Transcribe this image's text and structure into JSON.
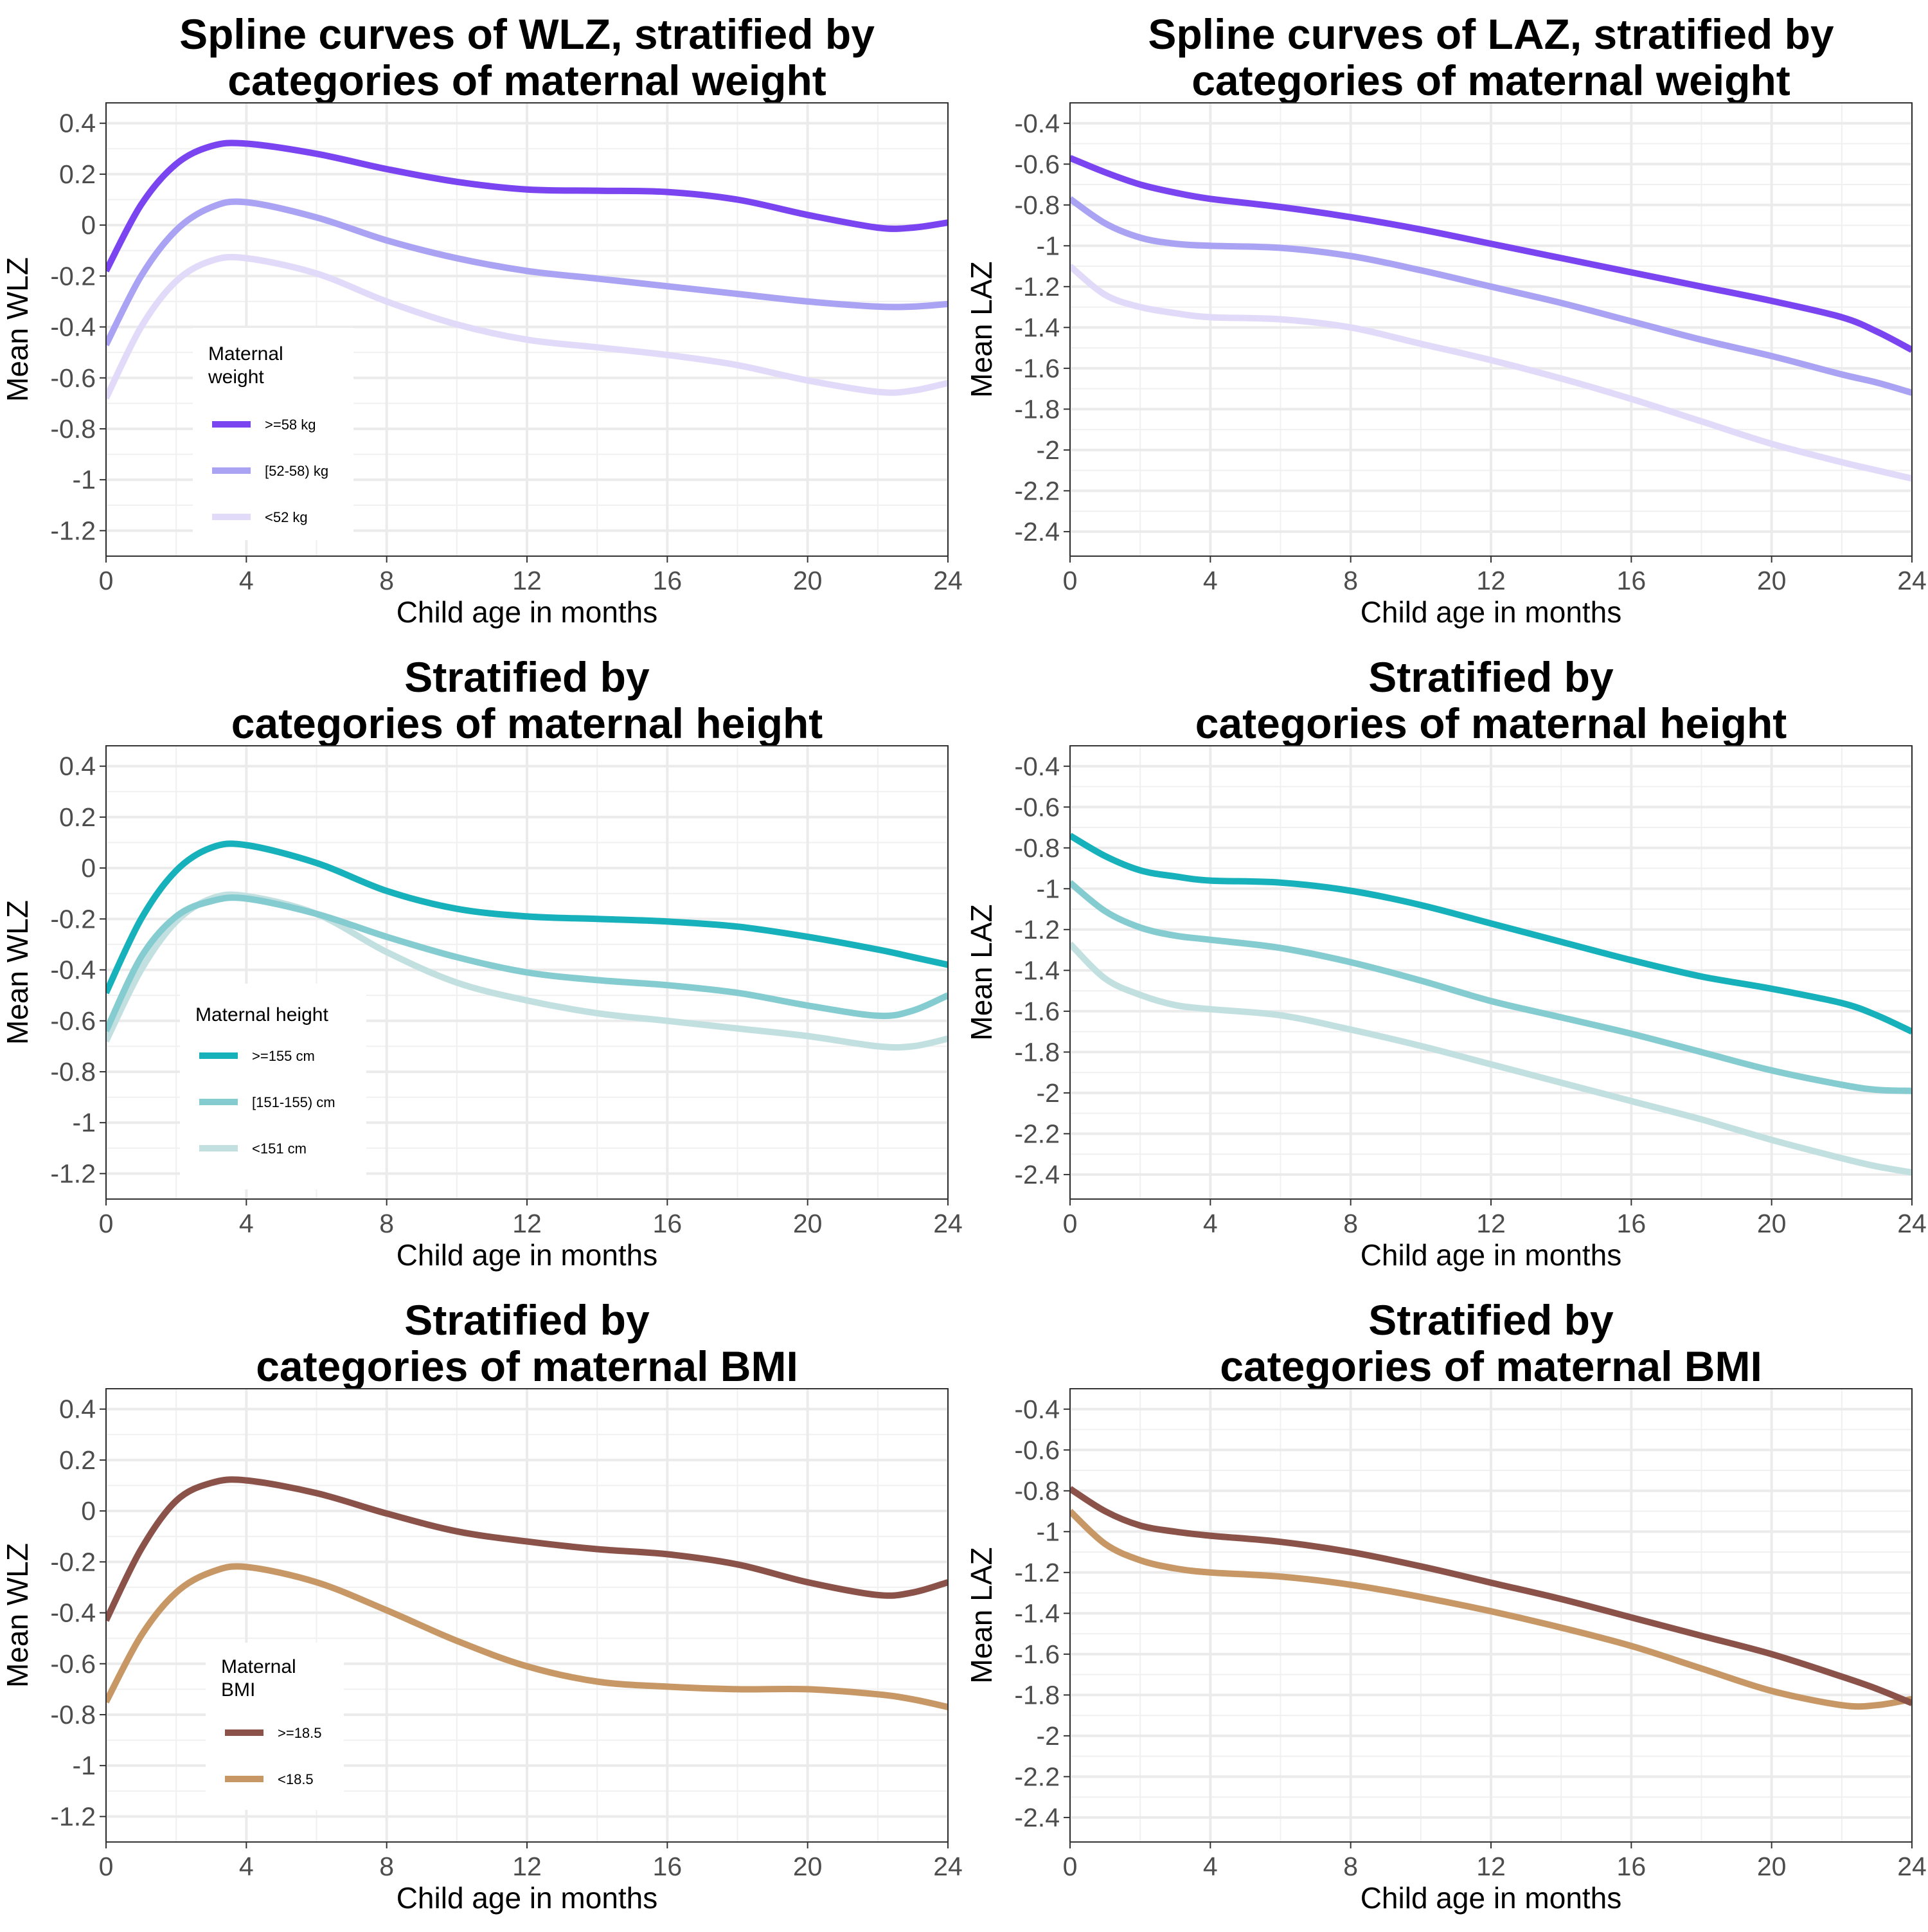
{
  "chart_data": [
    {
      "type": "line",
      "title": [
        "Spline curves of WLZ, stratified by",
        "categories of maternal weight"
      ],
      "xlabel": "Child age in months",
      "ylabel": "Mean WLZ",
      "xlim": [
        0,
        24
      ],
      "ylim": [
        -1.3,
        0.48
      ],
      "xticks": [
        0,
        4,
        8,
        12,
        16,
        20,
        24
      ],
      "xtick_labels": [
        "0",
        "4",
        "8",
        "12",
        "16",
        "20",
        "24"
      ],
      "yticks": [
        0.4,
        0.2,
        0,
        -0.2,
        -0.4,
        -0.6,
        -0.8,
        -1,
        -1.2
      ],
      "ytick_labels": [
        "0.4",
        "0.2",
        "0",
        "-0.2",
        "-0.4",
        "-0.6",
        "-0.8",
        "-1",
        "-1.2"
      ],
      "grid": true,
      "legend": {
        "title": [
          "Maternal",
          "weight"
        ],
        "position": "bottom-left",
        "labels": [
          ">=58 kg",
          "[52-58) kg",
          "<52 kg"
        ]
      },
      "x": [
        0,
        1,
        2,
        3,
        4,
        6,
        8,
        10,
        12,
        14,
        16,
        18,
        20,
        22,
        23,
        24
      ],
      "series": [
        {
          "name": ">=58 kg",
          "color": "#7a45f0",
          "values": [
            -0.18,
            0.08,
            0.24,
            0.31,
            0.32,
            0.28,
            0.22,
            0.17,
            0.14,
            0.135,
            0.13,
            0.1,
            0.04,
            -0.01,
            -0.01,
            0.01
          ]
        },
        {
          "name": "[52-58) kg",
          "color": "#aaa3f3",
          "values": [
            -0.47,
            -0.2,
            -0.02,
            0.07,
            0.09,
            0.03,
            -0.06,
            -0.13,
            -0.18,
            -0.21,
            -0.24,
            -0.27,
            -0.3,
            -0.32,
            -0.32,
            -0.31
          ]
        },
        {
          "name": "<52 kg",
          "color": "#e2daf9",
          "values": [
            -0.68,
            -0.4,
            -0.22,
            -0.14,
            -0.13,
            -0.19,
            -0.3,
            -0.39,
            -0.45,
            -0.48,
            -0.51,
            -0.55,
            -0.61,
            -0.655,
            -0.65,
            -0.62
          ]
        }
      ]
    },
    {
      "type": "line",
      "title": [
        "Spline curves of LAZ, stratified by",
        "categories of maternal weight"
      ],
      "xlabel": "Child age in months",
      "ylabel": "Mean LAZ",
      "xlim": [
        0,
        24
      ],
      "ylim": [
        -2.52,
        -0.3
      ],
      "xticks": [
        0,
        4,
        8,
        12,
        16,
        20,
        24
      ],
      "xtick_labels": [
        "0",
        "4",
        "8",
        "12",
        "16",
        "20",
        "24"
      ],
      "yticks": [
        -0.4,
        -0.6,
        -0.8,
        -1,
        -1.2,
        -1.4,
        -1.6,
        -1.8,
        -2,
        -2.2,
        -2.4
      ],
      "ytick_labels": [
        "-0.4",
        "-0.6",
        "-0.8",
        "-1",
        "-1.2",
        "-1.4",
        "-1.6",
        "-1.8",
        "-2",
        "-2.2",
        "-2.4"
      ],
      "grid": true,
      "x": [
        0,
        1,
        2,
        3,
        4,
        6,
        8,
        10,
        12,
        14,
        16,
        18,
        20,
        22,
        23,
        24
      ],
      "series": [
        {
          "name": ">=58 kg",
          "color": "#7a45f0",
          "values": [
            -0.57,
            -0.64,
            -0.7,
            -0.74,
            -0.77,
            -0.81,
            -0.86,
            -0.92,
            -0.99,
            -1.06,
            -1.13,
            -1.2,
            -1.27,
            -1.35,
            -1.42,
            -1.51
          ]
        },
        {
          "name": "[52-58) kg",
          "color": "#aaa3f3",
          "values": [
            -0.77,
            -0.89,
            -0.96,
            -0.99,
            -1.0,
            -1.01,
            -1.05,
            -1.12,
            -1.2,
            -1.28,
            -1.37,
            -1.46,
            -1.54,
            -1.63,
            -1.67,
            -1.72
          ]
        },
        {
          "name": "<52 kg",
          "color": "#e2daf9",
          "values": [
            -1.1,
            -1.24,
            -1.3,
            -1.33,
            -1.35,
            -1.36,
            -1.4,
            -1.48,
            -1.56,
            -1.65,
            -1.75,
            -1.86,
            -1.97,
            -2.06,
            -2.1,
            -2.14
          ]
        }
      ]
    },
    {
      "type": "line",
      "title": [
        "Stratified by",
        "categories of maternal height"
      ],
      "xlabel": "Child age in months",
      "ylabel": "Mean WLZ",
      "xlim": [
        0,
        24
      ],
      "ylim": [
        -1.3,
        0.48
      ],
      "xticks": [
        0,
        4,
        8,
        12,
        16,
        20,
        24
      ],
      "xtick_labels": [
        "0",
        "4",
        "8",
        "12",
        "16",
        "20",
        "24"
      ],
      "yticks": [
        0.4,
        0.2,
        0,
        -0.2,
        -0.4,
        -0.6,
        -0.8,
        -1,
        -1.2
      ],
      "ytick_labels": [
        "0.4",
        "0.2",
        "0",
        "-0.2",
        "-0.4",
        "-0.6",
        "-0.8",
        "-1",
        "-1.2"
      ],
      "grid": true,
      "legend": {
        "title": [
          "Maternal height"
        ],
        "position": "bottom-left",
        "labels": [
          ">=155 cm",
          "[151-155) cm",
          "<151 cm"
        ]
      },
      "x": [
        0,
        1,
        2,
        3,
        4,
        6,
        8,
        10,
        12,
        14,
        16,
        18,
        20,
        22,
        23,
        24
      ],
      "series": [
        {
          "name": ">=155 cm",
          "color": "#16b1bb",
          "values": [
            -0.49,
            -0.2,
            -0.01,
            0.08,
            0.09,
            0.02,
            -0.09,
            -0.16,
            -0.19,
            -0.2,
            -0.21,
            -0.23,
            -0.27,
            -0.32,
            -0.35,
            -0.38
          ]
        },
        {
          "name": "[151-155) cm",
          "color": "#84ccd0",
          "values": [
            -0.64,
            -0.35,
            -0.19,
            -0.13,
            -0.12,
            -0.18,
            -0.27,
            -0.35,
            -0.41,
            -0.44,
            -0.46,
            -0.49,
            -0.54,
            -0.58,
            -0.56,
            -0.5
          ]
        },
        {
          "name": "<151 cm",
          "color": "#c3e0e1",
          "values": [
            -0.68,
            -0.4,
            -0.21,
            -0.12,
            -0.11,
            -0.18,
            -0.33,
            -0.45,
            -0.52,
            -0.57,
            -0.6,
            -0.63,
            -0.66,
            -0.7,
            -0.7,
            -0.67
          ]
        }
      ]
    },
    {
      "type": "line",
      "title": [
        "Stratified by",
        "categories of maternal height"
      ],
      "xlabel": "Child age in months",
      "ylabel": "Mean LAZ",
      "xlim": [
        0,
        24
      ],
      "ylim": [
        -2.52,
        -0.3
      ],
      "xticks": [
        0,
        4,
        8,
        12,
        16,
        20,
        24
      ],
      "xtick_labels": [
        "0",
        "4",
        "8",
        "12",
        "16",
        "20",
        "24"
      ],
      "yticks": [
        -0.4,
        -0.6,
        -0.8,
        -1,
        -1.2,
        -1.4,
        -1.6,
        -1.8,
        -2,
        -2.2,
        -2.4
      ],
      "ytick_labels": [
        "-0.4",
        "-0.6",
        "-0.8",
        "-1",
        "-1.2",
        "-1.4",
        "-1.6",
        "-1.8",
        "-2",
        "-2.2",
        "-2.4"
      ],
      "grid": true,
      "x": [
        0,
        1,
        2,
        3,
        4,
        6,
        8,
        10,
        12,
        14,
        16,
        18,
        20,
        22,
        23,
        24
      ],
      "series": [
        {
          "name": ">=155 cm",
          "color": "#16b1bb",
          "values": [
            -0.74,
            -0.84,
            -0.91,
            -0.94,
            -0.96,
            -0.97,
            -1.01,
            -1.08,
            -1.17,
            -1.26,
            -1.35,
            -1.43,
            -1.49,
            -1.56,
            -1.62,
            -1.7
          ]
        },
        {
          "name": "[151-155) cm",
          "color": "#84ccd0",
          "values": [
            -0.97,
            -1.11,
            -1.19,
            -1.23,
            -1.25,
            -1.29,
            -1.36,
            -1.45,
            -1.55,
            -1.63,
            -1.71,
            -1.8,
            -1.89,
            -1.96,
            -1.985,
            -1.99
          ]
        },
        {
          "name": "<151 cm",
          "color": "#c3e0e1",
          "values": [
            -1.27,
            -1.44,
            -1.52,
            -1.57,
            -1.59,
            -1.62,
            -1.69,
            -1.77,
            -1.86,
            -1.95,
            -2.04,
            -2.13,
            -2.23,
            -2.32,
            -2.36,
            -2.39
          ]
        }
      ]
    },
    {
      "type": "line",
      "title": [
        "Stratified by",
        "categories of maternal BMI"
      ],
      "xlabel": "Child age in months",
      "ylabel": "Mean WLZ",
      "xlim": [
        0,
        24
      ],
      "ylim": [
        -1.3,
        0.48
      ],
      "xticks": [
        0,
        4,
        8,
        12,
        16,
        20,
        24
      ],
      "xtick_labels": [
        "0",
        "4",
        "8",
        "12",
        "16",
        "20",
        "24"
      ],
      "yticks": [
        0.4,
        0.2,
        0,
        -0.2,
        -0.4,
        -0.6,
        -0.8,
        -1,
        -1.2
      ],
      "ytick_labels": [
        "0.4",
        "0.2",
        "0",
        "-0.2",
        "-0.4",
        "-0.6",
        "-0.8",
        "-1",
        "-1.2"
      ],
      "grid": true,
      "legend": {
        "title": [
          "Maternal",
          "BMI"
        ],
        "position": "bottom-left",
        "labels": [
          ">=18.5",
          "<18.5"
        ]
      },
      "x": [
        0,
        1,
        2,
        3,
        4,
        6,
        8,
        10,
        12,
        14,
        16,
        18,
        20,
        22,
        23,
        24
      ],
      "series": [
        {
          "name": ">=18.5",
          "color": "#8b5249",
          "values": [
            -0.43,
            -0.15,
            0.04,
            0.11,
            0.12,
            0.07,
            -0.01,
            -0.08,
            -0.12,
            -0.15,
            -0.17,
            -0.21,
            -0.28,
            -0.33,
            -0.32,
            -0.28
          ]
        },
        {
          "name": "<18.5",
          "color": "#c79866",
          "values": [
            -0.75,
            -0.49,
            -0.32,
            -0.24,
            -0.22,
            -0.28,
            -0.39,
            -0.51,
            -0.61,
            -0.67,
            -0.69,
            -0.7,
            -0.7,
            -0.72,
            -0.74,
            -0.77
          ]
        }
      ]
    },
    {
      "type": "line",
      "title": [
        "Stratified by",
        "categories of maternal BMI"
      ],
      "xlabel": "Child age in months",
      "ylabel": "Mean LAZ",
      "xlim": [
        0,
        24
      ],
      "ylim": [
        -2.52,
        -0.3
      ],
      "xticks": [
        0,
        4,
        8,
        12,
        16,
        20,
        24
      ],
      "xtick_labels": [
        "0",
        "4",
        "8",
        "12",
        "16",
        "20",
        "24"
      ],
      "yticks": [
        -0.4,
        -0.6,
        -0.8,
        -1,
        -1.2,
        -1.4,
        -1.6,
        -1.8,
        -2,
        -2.2,
        -2.4
      ],
      "ytick_labels": [
        "-0.4",
        "-0.6",
        "-0.8",
        "-1",
        "-1.2",
        "-1.4",
        "-1.6",
        "-1.8",
        "-2",
        "-2.2",
        "-2.4"
      ],
      "grid": true,
      "x": [
        0,
        1,
        2,
        3,
        4,
        6,
        8,
        10,
        12,
        14,
        16,
        18,
        20,
        22,
        23,
        24
      ],
      "series": [
        {
          "name": ">=18.5",
          "color": "#8b5249",
          "values": [
            -0.79,
            -0.9,
            -0.97,
            -1.0,
            -1.02,
            -1.05,
            -1.1,
            -1.17,
            -1.25,
            -1.33,
            -1.42,
            -1.51,
            -1.6,
            -1.71,
            -1.77,
            -1.84
          ]
        },
        {
          "name": "<18.5",
          "color": "#c79866",
          "values": [
            -0.9,
            -1.06,
            -1.14,
            -1.18,
            -1.2,
            -1.22,
            -1.26,
            -1.32,
            -1.39,
            -1.47,
            -1.56,
            -1.67,
            -1.78,
            -1.85,
            -1.85,
            -1.82
          ]
        }
      ]
    }
  ]
}
